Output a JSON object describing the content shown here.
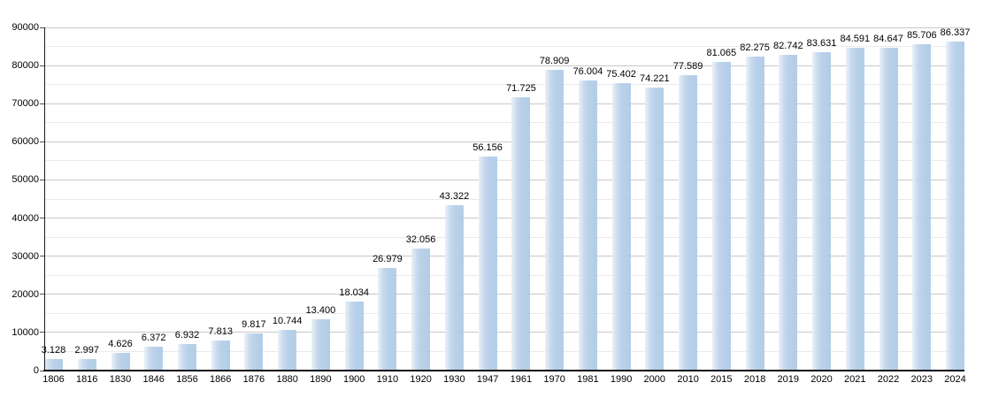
{
  "chart_data": {
    "type": "bar",
    "title": "",
    "xlabel": "",
    "ylabel": "",
    "categories": [
      "1806",
      "1816",
      "1830",
      "1846",
      "1856",
      "1866",
      "1876",
      "1880",
      "1890",
      "1900",
      "1910",
      "1920",
      "1930",
      "1947",
      "1961",
      "1970",
      "1981",
      "1990",
      "2000",
      "2010",
      "2015",
      "2018",
      "2019",
      "2020",
      "2021",
      "2022",
      "2023",
      "2024"
    ],
    "values": [
      3128,
      2997,
      4626,
      6372,
      6932,
      7813,
      9817,
      10744,
      13400,
      18034,
      26979,
      32056,
      43322,
      56156,
      71725,
      78909,
      76004,
      75402,
      74221,
      77589,
      81065,
      82275,
      82742,
      83631,
      84591,
      84647,
      85706,
      86337
    ],
    "value_labels": [
      "3.128",
      "2.997",
      "4.626",
      "6.372",
      "6.932",
      "7.813",
      "9.817",
      "10.744",
      "13.400",
      "18.034",
      "26.979",
      "32.056",
      "43.322",
      "56.156",
      "71.725",
      "78.909",
      "76.004",
      "75.402",
      "74.221",
      "77.589",
      "81.065",
      "82.275",
      "82.742",
      "83.631",
      "84.591",
      "84.647",
      "85.706",
      "86.337"
    ],
    "ylim": [
      0,
      90000
    ],
    "y_major_step": 10000,
    "y_minor_step": 5000,
    "y_tick_labels": [
      "0",
      "10000",
      "20000",
      "30000",
      "40000",
      "50000",
      "60000",
      "70000",
      "80000",
      "90000"
    ],
    "grid": true,
    "legend": "none",
    "colors": {
      "bar_fill": "#b3cde8",
      "bar_highlight": "#e9f0f8",
      "grid_major": "#c9c9c9",
      "grid_minor": "#eaeaea",
      "axis": "#111111",
      "text": "#000000"
    }
  }
}
